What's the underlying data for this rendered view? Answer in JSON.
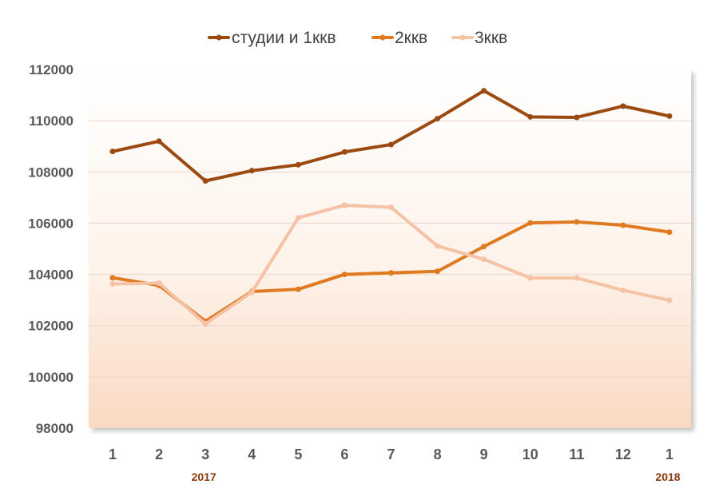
{
  "chart_data": {
    "type": "line",
    "title": "",
    "xlabel": "",
    "ylabel": "",
    "categories": [
      "1",
      "2",
      "3",
      "4",
      "5",
      "6",
      "7",
      "8",
      "9",
      "10",
      "11",
      "12",
      "1"
    ],
    "year_labels": [
      {
        "index": 2,
        "text": "2017"
      },
      {
        "index": 12,
        "text": "2018"
      }
    ],
    "ylim": [
      98000,
      112000
    ],
    "yticks": [
      "98000",
      "100000",
      "102000",
      "104000",
      "106000",
      "108000",
      "110000",
      "112000"
    ],
    "grid": true,
    "legend_position": "top",
    "series": [
      {
        "name": "студии и 1ккв",
        "color": "#9c4a12",
        "values": [
          108800,
          109200,
          107650,
          108050,
          108280,
          108780,
          109070,
          110080,
          111170,
          110150,
          110130,
          110570,
          110180
        ]
      },
      {
        "name": "2ккв",
        "color": "#e07a20",
        "values": [
          103870,
          103570,
          102170,
          103330,
          103420,
          104000,
          104060,
          104120,
          105090,
          106010,
          106050,
          105920,
          105650
        ]
      },
      {
        "name": "3ккв",
        "color": "#f5c2a6",
        "values": [
          103630,
          103660,
          102070,
          103300,
          106210,
          106700,
          106620,
          105110,
          104590,
          103860,
          103860,
          103380,
          102990
        ]
      }
    ]
  }
}
